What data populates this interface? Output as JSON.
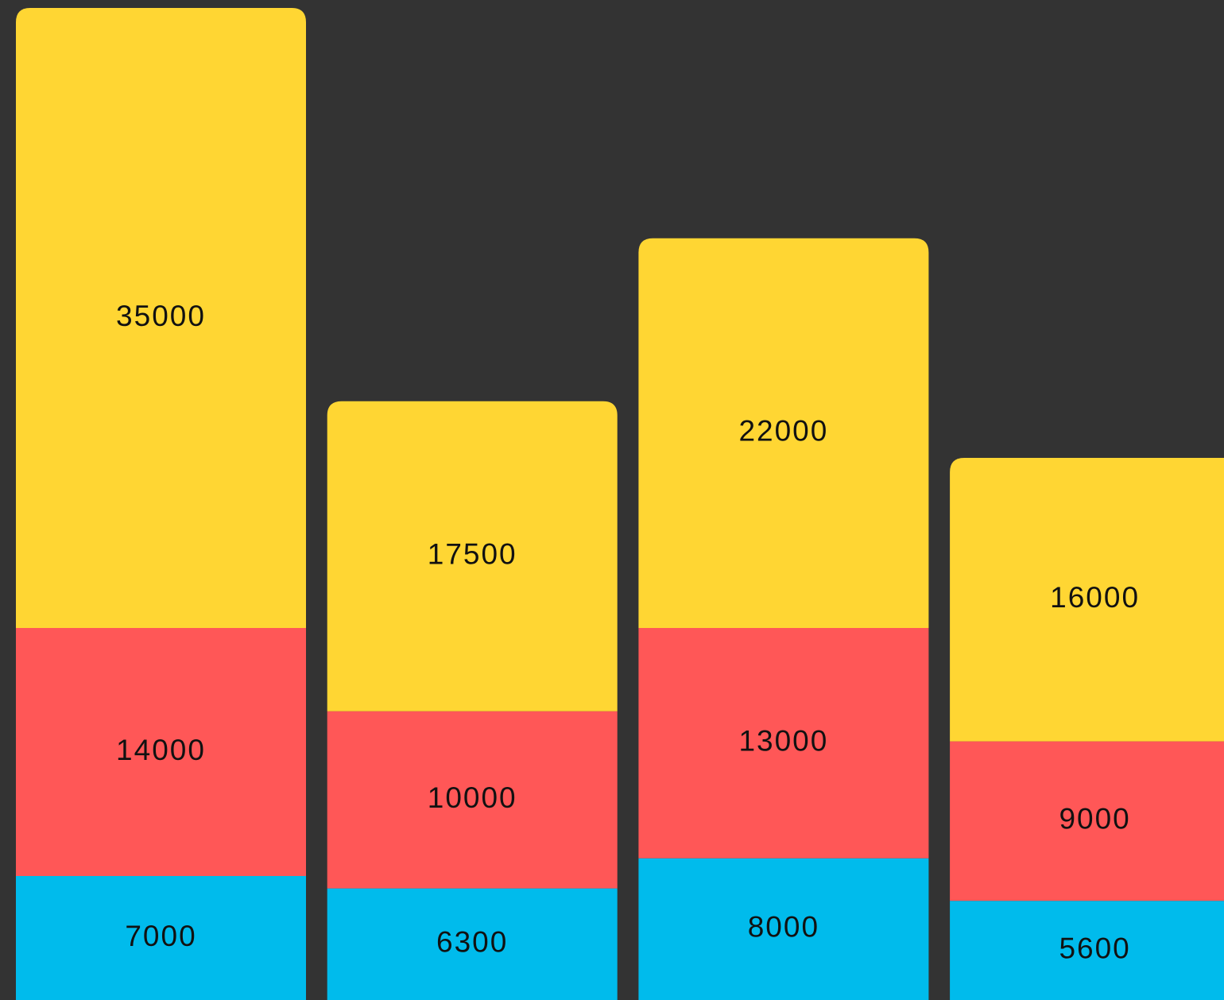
{
  "chart_data": {
    "type": "bar",
    "stacked": true,
    "series": [
      {
        "color": "#00bbec",
        "values": [
          7000,
          6300,
          8000,
          5600
        ]
      },
      {
        "color": "#ff5757",
        "values": [
          14000,
          10000,
          13000,
          9000
        ]
      },
      {
        "color": "#ffd633",
        "values": [
          35000,
          17500,
          22000,
          16000
        ]
      }
    ]
  }
}
